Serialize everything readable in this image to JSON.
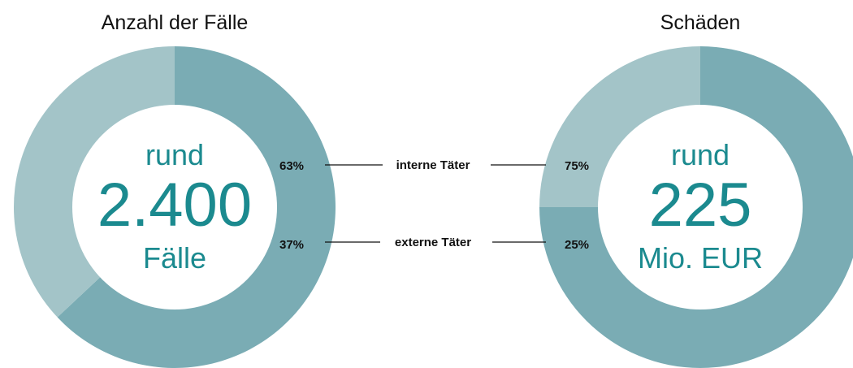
{
  "colors": {
    "dark_slice": "#7aacb4",
    "light_slice": "#a3c4c8",
    "center_text": "#1b8a8f",
    "label_text": "#111111",
    "connector": "#111111"
  },
  "categories": [
    "interne Täter",
    "externe Täter"
  ],
  "chart_data": [
    {
      "type": "pie",
      "title": "Anzahl der Fälle",
      "categories": [
        "interne Täter",
        "externe Täter"
      ],
      "values": [
        63,
        37
      ],
      "value_labels": [
        "63%",
        "37%"
      ],
      "center": {
        "line1": "rund",
        "line2": "2.400",
        "line3": "Fälle"
      }
    },
    {
      "type": "pie",
      "title": "Schäden",
      "categories": [
        "interne Täter",
        "externe Täter"
      ],
      "values": [
        75,
        25
      ],
      "value_labels": [
        "75%",
        "25%"
      ],
      "center": {
        "line1": "rund",
        "line2": "225",
        "line3": "Mio. EUR"
      }
    }
  ]
}
